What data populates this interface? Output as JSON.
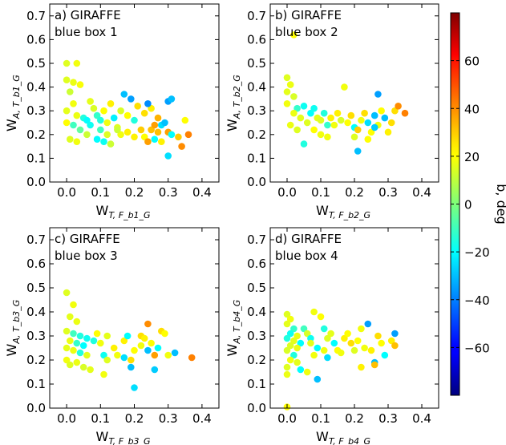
{
  "chart_data": {
    "colorbar": {
      "label": "b, deg",
      "range": [
        -80,
        80
      ],
      "ticks": [
        "60",
        "40",
        "20",
        "0",
        "−20",
        "−40",
        "−60"
      ],
      "tick_values": [
        60,
        40,
        20,
        0,
        -20,
        -40,
        -60
      ],
      "colormap": "jet"
    },
    "panels": [
      {
        "type": "scatter",
        "title_line1": "a) GIRAFFE",
        "title_line2": "blue box 1",
        "xlabel_main": "W",
        "xlabel_sub": "T, F_b1_G",
        "ylabel_main": "W",
        "ylabel_sub": "A, T_b1_G",
        "xlim": [
          -0.05,
          0.45
        ],
        "ylim": [
          0.0,
          0.75
        ],
        "xticks": [
          "0.0",
          "0.1",
          "0.2",
          "0.3",
          "0.4"
        ],
        "yticks": [
          "0.0",
          "0.1",
          "0.2",
          "0.3",
          "0.4",
          "0.5",
          "0.6",
          "0.7"
        ],
        "points": [
          [
            0.0,
            0.5,
            15
          ],
          [
            0.03,
            0.5,
            18
          ],
          [
            0.0,
            0.43,
            15
          ],
          [
            0.02,
            0.42,
            17
          ],
          [
            0.04,
            0.41,
            19
          ],
          [
            0.01,
            0.38,
            12
          ],
          [
            0.02,
            0.33,
            18
          ],
          [
            0.0,
            0.3,
            16
          ],
          [
            0.03,
            0.28,
            17
          ],
          [
            0.05,
            0.27,
            -15
          ],
          [
            0.0,
            0.25,
            20
          ],
          [
            0.02,
            0.24,
            -10
          ],
          [
            0.04,
            0.22,
            -5
          ],
          [
            0.06,
            0.2,
            12
          ],
          [
            0.01,
            0.18,
            15
          ],
          [
            0.03,
            0.17,
            18
          ],
          [
            0.07,
            0.34,
            16
          ],
          [
            0.08,
            0.31,
            14
          ],
          [
            0.06,
            0.26,
            -20
          ],
          [
            0.07,
            0.24,
            -18
          ],
          [
            0.09,
            0.28,
            -12
          ],
          [
            0.1,
            0.26,
            -15
          ],
          [
            0.11,
            0.3,
            20
          ],
          [
            0.12,
            0.25,
            18
          ],
          [
            0.1,
            0.22,
            -10
          ],
          [
            0.12,
            0.2,
            15
          ],
          [
            0.09,
            0.18,
            -20
          ],
          [
            0.11,
            0.17,
            -18
          ],
          [
            0.13,
            0.16,
            12
          ],
          [
            0.14,
            0.27,
            -22
          ],
          [
            0.15,
            0.23,
            15
          ],
          [
            0.13,
            0.33,
            22
          ],
          [
            0.16,
            0.3,
            14
          ],
          [
            0.17,
            0.37,
            -30
          ],
          [
            0.19,
            0.35,
            -35
          ],
          [
            0.21,
            0.32,
            25
          ],
          [
            0.18,
            0.28,
            20
          ],
          [
            0.2,
            0.26,
            -15
          ],
          [
            0.16,
            0.2,
            18
          ],
          [
            0.22,
            0.22,
            28
          ],
          [
            0.18,
            0.21,
            22
          ],
          [
            0.15,
            0.22,
            12
          ],
          [
            0.2,
            0.19,
            22
          ],
          [
            0.23,
            0.19,
            20
          ],
          [
            0.24,
            0.17,
            35
          ],
          [
            0.25,
            0.22,
            30
          ],
          [
            0.26,
            0.24,
            35
          ],
          [
            0.27,
            0.27,
            32
          ],
          [
            0.23,
            0.29,
            25
          ],
          [
            0.25,
            0.31,
            22
          ],
          [
            0.27,
            0.21,
            30
          ],
          [
            0.28,
            0.24,
            -25
          ],
          [
            0.29,
            0.25,
            -30
          ],
          [
            0.3,
            0.21,
            35
          ],
          [
            0.31,
            0.2,
            -20
          ],
          [
            0.3,
            0.34,
            -35
          ],
          [
            0.31,
            0.35,
            -30
          ],
          [
            0.3,
            0.11,
            -25
          ],
          [
            0.33,
            0.19,
            28
          ],
          [
            0.34,
            0.15,
            38
          ],
          [
            0.36,
            0.2,
            40
          ],
          [
            0.35,
            0.26,
            20
          ],
          [
            0.28,
            0.17,
            22
          ],
          [
            0.26,
            0.18,
            -20
          ],
          [
            0.24,
            0.33,
            -38
          ]
        ]
      },
      {
        "type": "scatter",
        "title_line1": "b) GIRAFFE",
        "title_line2": "blue box 2",
        "xlabel_main": "W",
        "xlabel_sub": "T, F_b2_G",
        "ylabel_main": "W",
        "ylabel_sub": "A, T_b2_G",
        "xlim": [
          -0.05,
          0.45
        ],
        "ylim": [
          0.0,
          0.75
        ],
        "xticks": [
          "0.0",
          "0.1",
          "0.2",
          "0.3",
          "0.4"
        ],
        "yticks": [
          "0.0",
          "0.1",
          "0.2",
          "0.3",
          "0.4",
          "0.5",
          "0.6",
          "0.7"
        ],
        "points": [
          [
            0.02,
            0.62,
            20
          ],
          [
            0.0,
            0.44,
            15
          ],
          [
            0.01,
            0.41,
            17
          ],
          [
            0.0,
            0.38,
            16
          ],
          [
            0.02,
            0.36,
            14
          ],
          [
            0.0,
            0.33,
            18
          ],
          [
            0.03,
            0.31,
            -12
          ],
          [
            0.05,
            0.32,
            -18
          ],
          [
            0.02,
            0.29,
            17
          ],
          [
            0.04,
            0.27,
            16
          ],
          [
            0.06,
            0.25,
            15
          ],
          [
            0.01,
            0.24,
            17
          ],
          [
            0.03,
            0.22,
            15
          ],
          [
            0.05,
            0.16,
            -15
          ],
          [
            0.07,
            0.29,
            -20
          ],
          [
            0.08,
            0.31,
            -18
          ],
          [
            0.09,
            0.27,
            16
          ],
          [
            0.1,
            0.26,
            15
          ],
          [
            0.11,
            0.29,
            -15
          ],
          [
            0.12,
            0.24,
            -12
          ],
          [
            0.08,
            0.22,
            20
          ],
          [
            0.1,
            0.2,
            18
          ],
          [
            0.13,
            0.27,
            22
          ],
          [
            0.14,
            0.24,
            18
          ],
          [
            0.15,
            0.29,
            22
          ],
          [
            0.16,
            0.26,
            14
          ],
          [
            0.17,
            0.4,
            18
          ],
          [
            0.18,
            0.25,
            20
          ],
          [
            0.19,
            0.28,
            25
          ],
          [
            0.2,
            0.23,
            -20
          ],
          [
            0.21,
            0.22,
            28
          ],
          [
            0.22,
            0.26,
            18
          ],
          [
            0.21,
            0.13,
            -30
          ],
          [
            0.23,
            0.29,
            25
          ],
          [
            0.24,
            0.25,
            -25
          ],
          [
            0.25,
            0.21,
            20
          ],
          [
            0.26,
            0.28,
            -30
          ],
          [
            0.27,
            0.24,
            18
          ],
          [
            0.28,
            0.3,
            20
          ],
          [
            0.27,
            0.37,
            -35
          ],
          [
            0.29,
            0.27,
            -30
          ],
          [
            0.3,
            0.21,
            22
          ],
          [
            0.31,
            0.25,
            25
          ],
          [
            0.32,
            0.3,
            25
          ],
          [
            0.33,
            0.32,
            38
          ],
          [
            0.35,
            0.29,
            40
          ],
          [
            0.24,
            0.18,
            20
          ],
          [
            0.2,
            0.19,
            15
          ],
          [
            0.12,
            0.19,
            18
          ],
          [
            0.26,
            0.23,
            -28
          ]
        ]
      },
      {
        "type": "scatter",
        "title_line1": "c) GIRAFFE",
        "title_line2": "blue box 3",
        "xlabel_main": "W",
        "xlabel_sub": "T, F_b3_G",
        "ylabel_main": "W",
        "ylabel_sub": "A, T_b3_G",
        "xlim": [
          -0.05,
          0.45
        ],
        "ylim": [
          0.0,
          0.75
        ],
        "xticks": [
          "0.0",
          "0.1",
          "0.2",
          "0.3",
          "0.4"
        ],
        "yticks": [
          "0.0",
          "0.1",
          "0.2",
          "0.3",
          "0.4",
          "0.5",
          "0.6",
          "0.7"
        ],
        "points": [
          [
            0.0,
            0.48,
            15
          ],
          [
            0.02,
            0.43,
            18
          ],
          [
            0.01,
            0.38,
            16
          ],
          [
            0.03,
            0.36,
            17
          ],
          [
            0.0,
            0.32,
            15
          ],
          [
            0.02,
            0.31,
            -10
          ],
          [
            0.04,
            0.3,
            -15
          ],
          [
            0.06,
            0.29,
            -18
          ],
          [
            0.01,
            0.28,
            17
          ],
          [
            0.03,
            0.27,
            -12
          ],
          [
            0.05,
            0.26,
            -20
          ],
          [
            0.0,
            0.25,
            16
          ],
          [
            0.02,
            0.24,
            17
          ],
          [
            0.04,
            0.23,
            -15
          ],
          [
            0.06,
            0.22,
            16
          ],
          [
            0.0,
            0.2,
            18
          ],
          [
            0.03,
            0.19,
            17
          ],
          [
            0.01,
            0.18,
            15
          ],
          [
            0.05,
            0.17,
            14
          ],
          [
            0.07,
            0.16,
            16
          ],
          [
            0.08,
            0.28,
            -15
          ],
          [
            0.09,
            0.31,
            20
          ],
          [
            0.1,
            0.27,
            18
          ],
          [
            0.11,
            0.22,
            -18
          ],
          [
            0.12,
            0.2,
            15
          ],
          [
            0.11,
            0.14,
            18
          ],
          [
            0.12,
            0.3,
            16
          ],
          [
            0.14,
            0.25,
            22
          ],
          [
            0.15,
            0.22,
            18
          ],
          [
            0.17,
            0.28,
            22
          ],
          [
            0.18,
            0.3,
            -20
          ],
          [
            0.19,
            0.2,
            25
          ],
          [
            0.2,
            0.24,
            20
          ],
          [
            0.19,
            0.17,
            -30
          ],
          [
            0.17,
            0.21,
            -25
          ],
          [
            0.2,
            0.085,
            -25
          ],
          [
            0.22,
            0.3,
            25
          ],
          [
            0.23,
            0.29,
            22
          ],
          [
            0.24,
            0.35,
            38
          ],
          [
            0.24,
            0.24,
            -30
          ],
          [
            0.25,
            0.27,
            20
          ],
          [
            0.26,
            0.22,
            35
          ],
          [
            0.27,
            0.25,
            -20
          ],
          [
            0.26,
            0.16,
            -28
          ],
          [
            0.28,
            0.32,
            25
          ],
          [
            0.29,
            0.31,
            20
          ],
          [
            0.3,
            0.22,
            18
          ],
          [
            0.32,
            0.23,
            -30
          ],
          [
            0.37,
            0.21,
            40
          ],
          [
            0.22,
            0.26,
            18
          ]
        ]
      },
      {
        "type": "scatter",
        "title_line1": "d) GIRAFFE",
        "title_line2": "blue box 4",
        "xlabel_main": "W",
        "xlabel_sub": "T, F_b4_G",
        "ylabel_main": "W",
        "ylabel_sub": "A, T_b4_G",
        "xlim": [
          -0.05,
          0.45
        ],
        "ylim": [
          0.0,
          0.75
        ],
        "xticks": [
          "0.0",
          "0.1",
          "0.2",
          "0.3",
          "0.4"
        ],
        "yticks": [
          "0.0",
          "0.1",
          "0.2",
          "0.3",
          "0.4",
          "0.5",
          "0.6",
          "0.7"
        ],
        "points": [
          [
            0.0,
            0.39,
            15
          ],
          [
            0.01,
            0.37,
            18
          ],
          [
            0.0,
            0.35,
            16
          ],
          [
            0.02,
            0.33,
            -12
          ],
          [
            0.01,
            0.31,
            -18
          ],
          [
            0.03,
            0.3,
            17
          ],
          [
            0.0,
            0.29,
            -15
          ],
          [
            0.02,
            0.28,
            16
          ],
          [
            0.04,
            0.27,
            -20
          ],
          [
            0.01,
            0.26,
            15
          ],
          [
            0.03,
            0.25,
            17
          ],
          [
            0.0,
            0.24,
            14
          ],
          [
            0.02,
            0.22,
            -15
          ],
          [
            0.01,
            0.2,
            18
          ],
          [
            0.03,
            0.19,
            16
          ],
          [
            0.0,
            0.17,
            15
          ],
          [
            0.04,
            0.16,
            -20
          ],
          [
            0.0,
            0.14,
            17
          ],
          [
            0.06,
            0.15,
            18
          ],
          [
            0.0,
            0.005,
            20
          ],
          [
            0.05,
            0.33,
            -10
          ],
          [
            0.06,
            0.31,
            14
          ],
          [
            0.07,
            0.29,
            -18
          ],
          [
            0.08,
            0.4,
            18
          ],
          [
            0.07,
            0.27,
            16
          ],
          [
            0.09,
            0.25,
            -20
          ],
          [
            0.08,
            0.22,
            18
          ],
          [
            0.09,
            0.12,
            -30
          ],
          [
            0.1,
            0.38,
            20
          ],
          [
            0.11,
            0.33,
            -15
          ],
          [
            0.12,
            0.29,
            15
          ],
          [
            0.11,
            0.24,
            18
          ],
          [
            0.12,
            0.21,
            -25
          ],
          [
            0.13,
            0.31,
            16
          ],
          [
            0.14,
            0.27,
            -20
          ],
          [
            0.15,
            0.24,
            20
          ],
          [
            0.16,
            0.23,
            18
          ],
          [
            0.17,
            0.29,
            22
          ],
          [
            0.18,
            0.31,
            20
          ],
          [
            0.19,
            0.27,
            25
          ],
          [
            0.2,
            0.24,
            15
          ],
          [
            0.21,
            0.28,
            20
          ],
          [
            0.22,
            0.33,
            18
          ],
          [
            0.23,
            0.25,
            18
          ],
          [
            0.24,
            0.35,
            -35
          ],
          [
            0.25,
            0.24,
            22
          ],
          [
            0.26,
            0.19,
            -30
          ],
          [
            0.27,
            0.3,
            25
          ],
          [
            0.28,
            0.27,
            20
          ],
          [
            0.31,
            0.28,
            22
          ],
          [
            0.32,
            0.31,
            -35
          ],
          [
            0.32,
            0.26,
            30
          ],
          [
            0.29,
            0.22,
            -20
          ],
          [
            0.22,
            0.17,
            22
          ],
          [
            0.26,
            0.18,
            30
          ]
        ]
      }
    ]
  }
}
